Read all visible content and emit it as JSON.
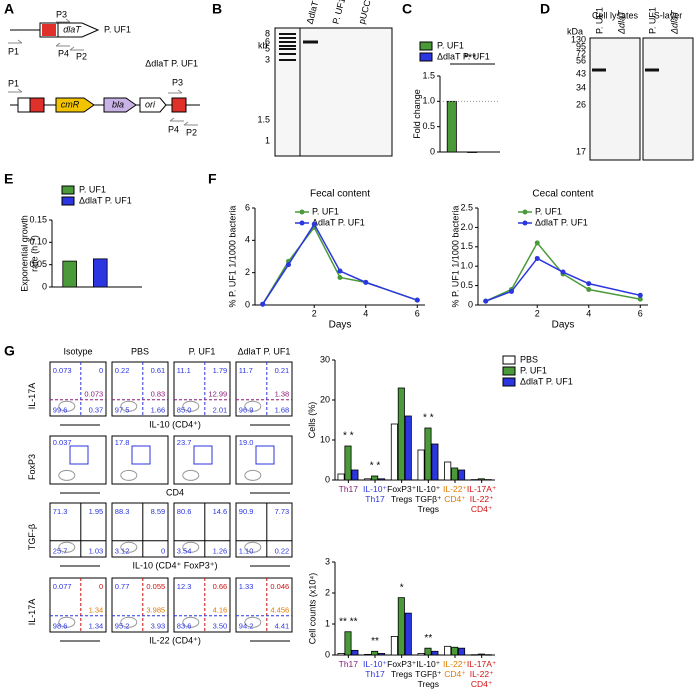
{
  "panel_labels": [
    "A",
    "B",
    "C",
    "D",
    "E",
    "F",
    "G"
  ],
  "construct_wt": [
    "P1",
    "P3",
    "dlaT",
    "P. UF1",
    "P4",
    "P2"
  ],
  "construct_mutant": [
    "P1",
    "cmR",
    "bla",
    "ori",
    "ΔdlaT P. UF1",
    "P3",
    "P4",
    "P2"
  ],
  "gel_b": {
    "unit": "kb",
    "markers": [
      "8",
      "6",
      "5",
      "3",
      "1.5",
      "1"
    ],
    "lanes": [
      "ΔdlaT P. UF1",
      "P. UF1",
      "pUCC-dlaT"
    ]
  },
  "gel_d": {
    "groups": [
      "Cell lysates",
      "S-layer"
    ],
    "lanes": [
      "P. UF1",
      "ΔdlaT",
      "P. UF1",
      "ΔdlaT"
    ],
    "unit": "kDa",
    "markers": [
      "130",
      "95",
      "72",
      "56",
      "43",
      "34",
      "26",
      "17"
    ]
  },
  "flow": {
    "columns": [
      "Isotype",
      "PBS",
      "P. UF1",
      "ΔdlaT P. UF1"
    ],
    "rows": [
      {
        "y_label": "IL-17A",
        "x_label": "IL-10 (CD4⁺)",
        "plots": [
          [
            "0.073",
            "0",
            "0.073",
            "99.6",
            "0.37"
          ],
          [
            "0.22",
            "0.61",
            "0.83",
            "97.5",
            "1.66"
          ],
          [
            "11.1",
            "1.79",
            "12.99",
            "85.0",
            "2.01"
          ],
          [
            "11.7",
            "0.21",
            "1.38",
            "96.9",
            "1.68"
          ]
        ]
      },
      {
        "y_label": "FoxP3",
        "x_label": "CD4",
        "plots": [
          [
            "0.037"
          ],
          [
            "17.8"
          ],
          [
            "23.7"
          ],
          [
            "19.0"
          ]
        ]
      },
      {
        "y_label": "TGF-β",
        "x_label": "IL-10 (CD4⁺ FoxP3⁺)",
        "plots": [
          [
            "71.3",
            "1.95",
            "25.7",
            "1.03"
          ],
          [
            "88.3",
            "8.59",
            "3.12",
            "0"
          ],
          [
            "80.6",
            "14.6",
            "3.54",
            "1.26"
          ],
          [
            "90.9",
            "7.73",
            "1.10",
            "0.22"
          ]
        ]
      },
      {
        "y_label": "IL-17A",
        "x_label": "IL-22 (CD4⁺)",
        "plots": [
          [
            "0.077",
            "0",
            "1.34",
            "98.6",
            "1.34"
          ],
          [
            "0.77",
            "0.055",
            "3.985",
            "95.2",
            "3.93"
          ],
          [
            "12.3",
            "0.66",
            "4.16",
            "83.6",
            "3.50"
          ],
          [
            "1.33",
            "0.046",
            "4.456",
            "94.2",
            "4.41"
          ]
        ]
      }
    ]
  },
  "chart_data": [
    {
      "type": "bar",
      "y_label": "Fold change",
      "ylim": [
        0,
        1.5
      ],
      "yticks": [
        0,
        0.5,
        {
          "value": 1,
          "label": "1.0"
        },
        1.5
      ],
      "reference_line": 1,
      "annotation": "***",
      "legend": "top",
      "series": [
        {
          "name": "P. UF1",
          "color": "#4a9a3a",
          "values": [
            1.0
          ]
        },
        {
          "name": "ΔdlaT P. UF1",
          "color": "#2b35e0",
          "values": [
            0.0
          ]
        }
      ]
    },
    {
      "type": "bar",
      "y_label": "Exponential growth rate (h⁻¹)",
      "ylim": [
        0,
        0.15
      ],
      "yticks": [
        0,
        0.05,
        {
          "value": 0.1,
          "label": "0.10"
        },
        0.15
      ],
      "legend": "top",
      "series": [
        {
          "name": "P. UF1",
          "color": "#4a9a3a",
          "values": [
            0.058
          ]
        },
        {
          "name": "ΔdlaT P. UF1",
          "color": "#2b35e0",
          "values": [
            0.063
          ]
        }
      ]
    },
    {
      "type": "line",
      "title": "Fecal content",
      "y_label": "% P. UF1 1/1000 bacteria",
      "x_label": "Days",
      "x": [
        0,
        1,
        2,
        3,
        4,
        6
      ],
      "xlim": [
        -0.3,
        6.3
      ],
      "xticks": [
        2,
        4,
        6
      ],
      "ylim": [
        0,
        6
      ],
      "yticks": [
        0,
        2,
        4,
        6
      ],
      "legend": "inside",
      "series": [
        {
          "name": "P. UF1",
          "color": "#4a9a3a",
          "values": [
            0.05,
            2.7,
            4.8,
            1.7,
            1.4,
            0.3
          ]
        },
        {
          "name": "ΔdlaT P. UF1",
          "color": "#2b35e0",
          "values": [
            0.05,
            2.5,
            5.0,
            2.1,
            1.4,
            0.3
          ]
        }
      ]
    },
    {
      "type": "line",
      "title": "Cecal content",
      "y_label": "% P. UF1 1/1000 bacteria",
      "x_label": "Days",
      "x": [
        0,
        1,
        2,
        3,
        4,
        6
      ],
      "xlim": [
        -0.3,
        6.3
      ],
      "xticks": [
        2,
        4,
        6
      ],
      "ylim": [
        0,
        2.5
      ],
      "yticks": [
        0,
        0.5,
        {
          "value": 1,
          "label": "1.0"
        },
        1.5,
        {
          "value": 2,
          "label": "2.0"
        },
        2.5
      ],
      "legend": "inside",
      "series": [
        {
          "name": "P. UF1",
          "color": "#4a9a3a",
          "values": [
            0.1,
            0.4,
            1.6,
            0.8,
            0.4,
            0.15
          ]
        },
        {
          "name": "ΔdlaT P. UF1",
          "color": "#2b35e0",
          "values": [
            0.1,
            0.35,
            1.2,
            0.85,
            0.55,
            0.25
          ]
        }
      ]
    },
    {
      "type": "bar",
      "y_label": "Cells (%)",
      "ylim": [
        0,
        30
      ],
      "yticks": [
        0,
        10,
        20,
        30
      ],
      "legend": "right",
      "categories": [
        "Th17",
        "IL-10⁺ Th17",
        "FoxP3⁺ Tregs",
        "IL-10⁺ TGFβ⁺ Tregs",
        "IL-22⁺ CD4⁺",
        "IL-17A⁺ IL-22⁺ CD4⁺"
      ],
      "category_colors": [
        "#8b1a7a",
        "#2b35e0",
        "#000000",
        "#000000",
        "#e07b00",
        "#d01010"
      ],
      "significance": [
        "* *",
        "* *",
        null,
        "* *",
        null,
        null
      ],
      "series": [
        {
          "name": "PBS",
          "color": "#ffffff",
          "values": [
            1.5,
            0.3,
            14,
            7.5,
            4.5,
            0.1
          ]
        },
        {
          "name": "P. UF1",
          "color": "#4a9a3a",
          "values": [
            8.5,
            1.0,
            23,
            13,
            3,
            0.3
          ]
        },
        {
          "name": "ΔdlaT P. UF1",
          "color": "#2b35e0",
          "values": [
            2.5,
            0.3,
            16,
            9,
            2.5,
            0.1
          ]
        }
      ]
    },
    {
      "type": "bar",
      "y_label": "Cell counts (x10⁴)",
      "ylim": [
        0,
        3
      ],
      "yticks": [
        0,
        1,
        2,
        3
      ],
      "categories": [
        "Th17",
        "IL-10⁺ Th17",
        "FoxP3⁺ Tregs",
        "IL-10⁺ TGFβ⁺ Tregs",
        "IL-22⁺ CD4⁺",
        "IL-17A⁺ IL-22⁺ CD4⁺"
      ],
      "category_colors": [
        "#8b1a7a",
        "#2b35e0",
        "#000000",
        "#000000",
        "#e07b00",
        "#d01010"
      ],
      "significance": [
        "** **",
        "**",
        "*",
        "**",
        null,
        null
      ],
      "series": [
        {
          "name": "PBS",
          "color": "#ffffff",
          "values": [
            0.05,
            0.02,
            0.6,
            0.05,
            0.28,
            0.01
          ]
        },
        {
          "name": "P. UF1",
          "color": "#4a9a3a",
          "values": [
            0.75,
            0.12,
            1.85,
            0.22,
            0.25,
            0.03
          ]
        },
        {
          "name": "ΔdlaT P. UF1",
          "color": "#2b35e0",
          "values": [
            0.15,
            0.05,
            1.35,
            0.12,
            0.22,
            0.01
          ]
        }
      ]
    }
  ]
}
